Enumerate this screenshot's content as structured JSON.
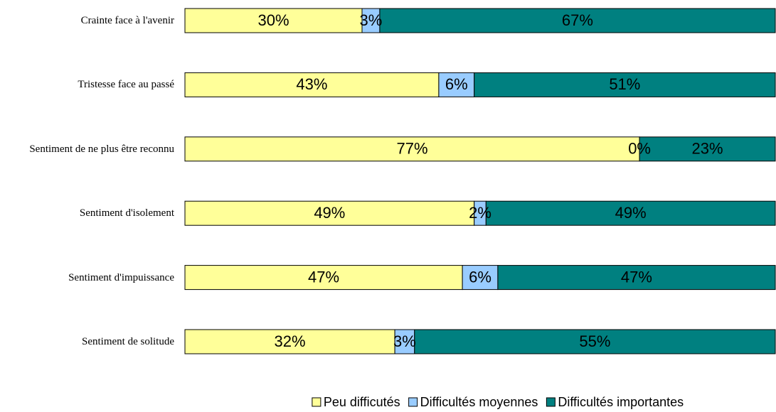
{
  "chart_data": {
    "type": "bar",
    "orientation": "horizontal",
    "stacked": "percent",
    "categories": [
      "Crainte face à l'avenir",
      "Tristesse face au passé",
      "Sentiment de ne plus être reconnu",
      "Sentiment d'isolement",
      "Sentiment d'impuissance",
      "Sentiment de solitude"
    ],
    "series": [
      {
        "name": "Peu difficutés",
        "color": "#ffff99",
        "values": [
          30,
          43,
          77,
          49,
          47,
          32
        ],
        "value_labels": [
          "30%",
          "43%",
          "77%",
          "49%",
          "47%",
          "32%"
        ]
      },
      {
        "name": "Difficultés moyennes",
        "color": "#99ccff",
        "values": [
          3,
          6,
          0,
          2,
          6,
          3
        ],
        "value_labels": [
          "3%",
          "6%",
          "0%",
          "2%",
          "6%",
          "3%"
        ]
      },
      {
        "name": "Difficultés importantes",
        "color": "#008080",
        "values": [
          67,
          51,
          23,
          49,
          47,
          55
        ],
        "value_labels": [
          "67%",
          "51%",
          "23%",
          "49%",
          "47%",
          "55%"
        ]
      }
    ],
    "legend": "bottom"
  }
}
